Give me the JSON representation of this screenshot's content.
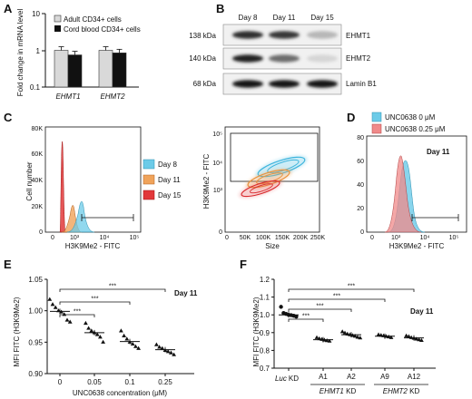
{
  "panels": {
    "A": {
      "letter": "A",
      "ylabel_1": "Fold change in mRNA level",
      "ylabel_2": "",
      "yticks": [
        "10",
        "1",
        "0.1"
      ],
      "legend": [
        "Adult CD34+ cells",
        "Cord blood CD34+ cells"
      ],
      "colors": {
        "adult": "#d9d9d9",
        "cord": "#111111"
      },
      "chart_data": {
        "type": "bar",
        "categories": [
          "EHMT1",
          "EHMT2"
        ],
        "series": [
          {
            "name": "Adult CD34+ cells",
            "values": [
              1.0,
              1.0
            ]
          },
          {
            "name": "Cord blood CD34+ cells",
            "values": [
              0.75,
              0.85
            ]
          }
        ],
        "yscale": "log",
        "ylim": [
          0.1,
          10
        ]
      }
    },
    "B": {
      "letter": "B",
      "columns": [
        "Day 8",
        "Day 11",
        "Day 15"
      ],
      "rows": [
        {
          "kda": "138 kDa",
          "protein": "EHMT1"
        },
        {
          "kda": "140 kDa",
          "protein": "EHMT2"
        },
        {
          "kda": "68 kDa",
          "protein": "Lamin B1"
        }
      ],
      "band_intensity": [
        [
          0.9,
          0.85,
          0.25
        ],
        [
          0.95,
          0.6,
          0.1
        ],
        [
          1.0,
          1.0,
          1.0
        ]
      ]
    },
    "C": {
      "letter": "C",
      "hist_ylabel": "Cell number",
      "hist_xlabel": "H3K9Me2 - FITC",
      "hist_yticks": [
        "80K",
        "60K",
        "40K",
        "20K",
        "0"
      ],
      "hist_xticks": [
        "0",
        "10³",
        "10⁴",
        "10⁵"
      ],
      "legend": [
        {
          "label": "Day 8",
          "color": "#6ccbe8"
        },
        {
          "label": "Day 11",
          "color": "#f0a35a"
        },
        {
          "label": "Day 15",
          "color": "#e2383a"
        }
      ],
      "scatter_ylabel": "H3K9Me2 - FITC",
      "scatter_xlabel": "Size",
      "scatter_yticks": [
        "10⁵",
        "10⁴",
        "10³",
        "0"
      ],
      "scatter_xticks": [
        "0",
        "50K",
        "100K",
        "150K",
        "200K",
        "250K"
      ]
    },
    "D": {
      "letter": "D",
      "legend": [
        {
          "label": "UNC0638 0 μM",
          "color": "#6ccbe8"
        },
        {
          "label": "UNC0638 0.25 μM",
          "color": "#f08a8a"
        }
      ],
      "day": "Day 11",
      "xlabel": "H3K9Me2 - FITC",
      "xticks": [
        "0",
        "10³",
        "10⁴",
        "10⁵"
      ],
      "yticks": [
        "80",
        "60",
        "40",
        "20",
        "0"
      ]
    },
    "E": {
      "letter": "E",
      "ylabel": "MFI FITC (H3K9Me2)",
      "xlabel": "UNC0638 concentration (μM)",
      "day": "Day 11",
      "stars": "***",
      "chart_data": {
        "type": "scatter",
        "categories": [
          "0",
          "0.05",
          "0.1",
          "0.25"
        ],
        "means": [
          0.999,
          0.965,
          0.951,
          0.938
        ],
        "points": [
          [
            1.018,
            1.01,
            1.005,
            1.0,
            0.998,
            0.994,
            0.985,
            0.982
          ],
          [
            0.98,
            0.972,
            0.968,
            0.965,
            0.962,
            0.958,
            0.95
          ],
          [
            0.968,
            0.96,
            0.955,
            0.95,
            0.947,
            0.943,
            0.94
          ],
          [
            0.946,
            0.942,
            0.94,
            0.937,
            0.935,
            0.933,
            0.93
          ]
        ],
        "ylim": [
          0.9,
          1.05
        ],
        "yticks": [
          "1.05",
          "1.00",
          "0.95",
          "0.90"
        ]
      }
    },
    "F": {
      "letter": "F",
      "ylabel": "MFI FITC (H3K9Me2)",
      "day": "Day 11",
      "stars": "***",
      "group_labels": {
        "luc": "Luc",
        "kd": "KD",
        "ehmt1": "EHMT1",
        "ehmt2": "EHMT2",
        "kd_suffix": " KD"
      },
      "chart_data": {
        "type": "scatter",
        "categories": [
          "Luc KD",
          "A1",
          "A2",
          "A9",
          "A12"
        ],
        "x_tick_labels": [
          "",
          "A1",
          "A2",
          "A9",
          "A12"
        ],
        "means": [
          1.0,
          0.86,
          0.888,
          0.88,
          0.87
        ],
        "points": [
          [
            1.045,
            1.01,
            1.005,
            1.0,
            0.998,
            0.995,
            0.99
          ],
          [
            0.872,
            0.866,
            0.862,
            0.858,
            0.855,
            0.852
          ],
          [
            0.905,
            0.898,
            0.892,
            0.888,
            0.884,
            0.88,
            0.874,
            0.87
          ],
          [
            0.888,
            0.885,
            0.882,
            0.879,
            0.876,
            0.872
          ],
          [
            0.882,
            0.878,
            0.872,
            0.868,
            0.864,
            0.86,
            0.856
          ]
        ],
        "ylim": [
          0.7,
          1.2
        ],
        "yticks": [
          "1.2",
          "1.1",
          "1.0",
          "0.9",
          "0.8",
          "0.7"
        ]
      }
    }
  }
}
